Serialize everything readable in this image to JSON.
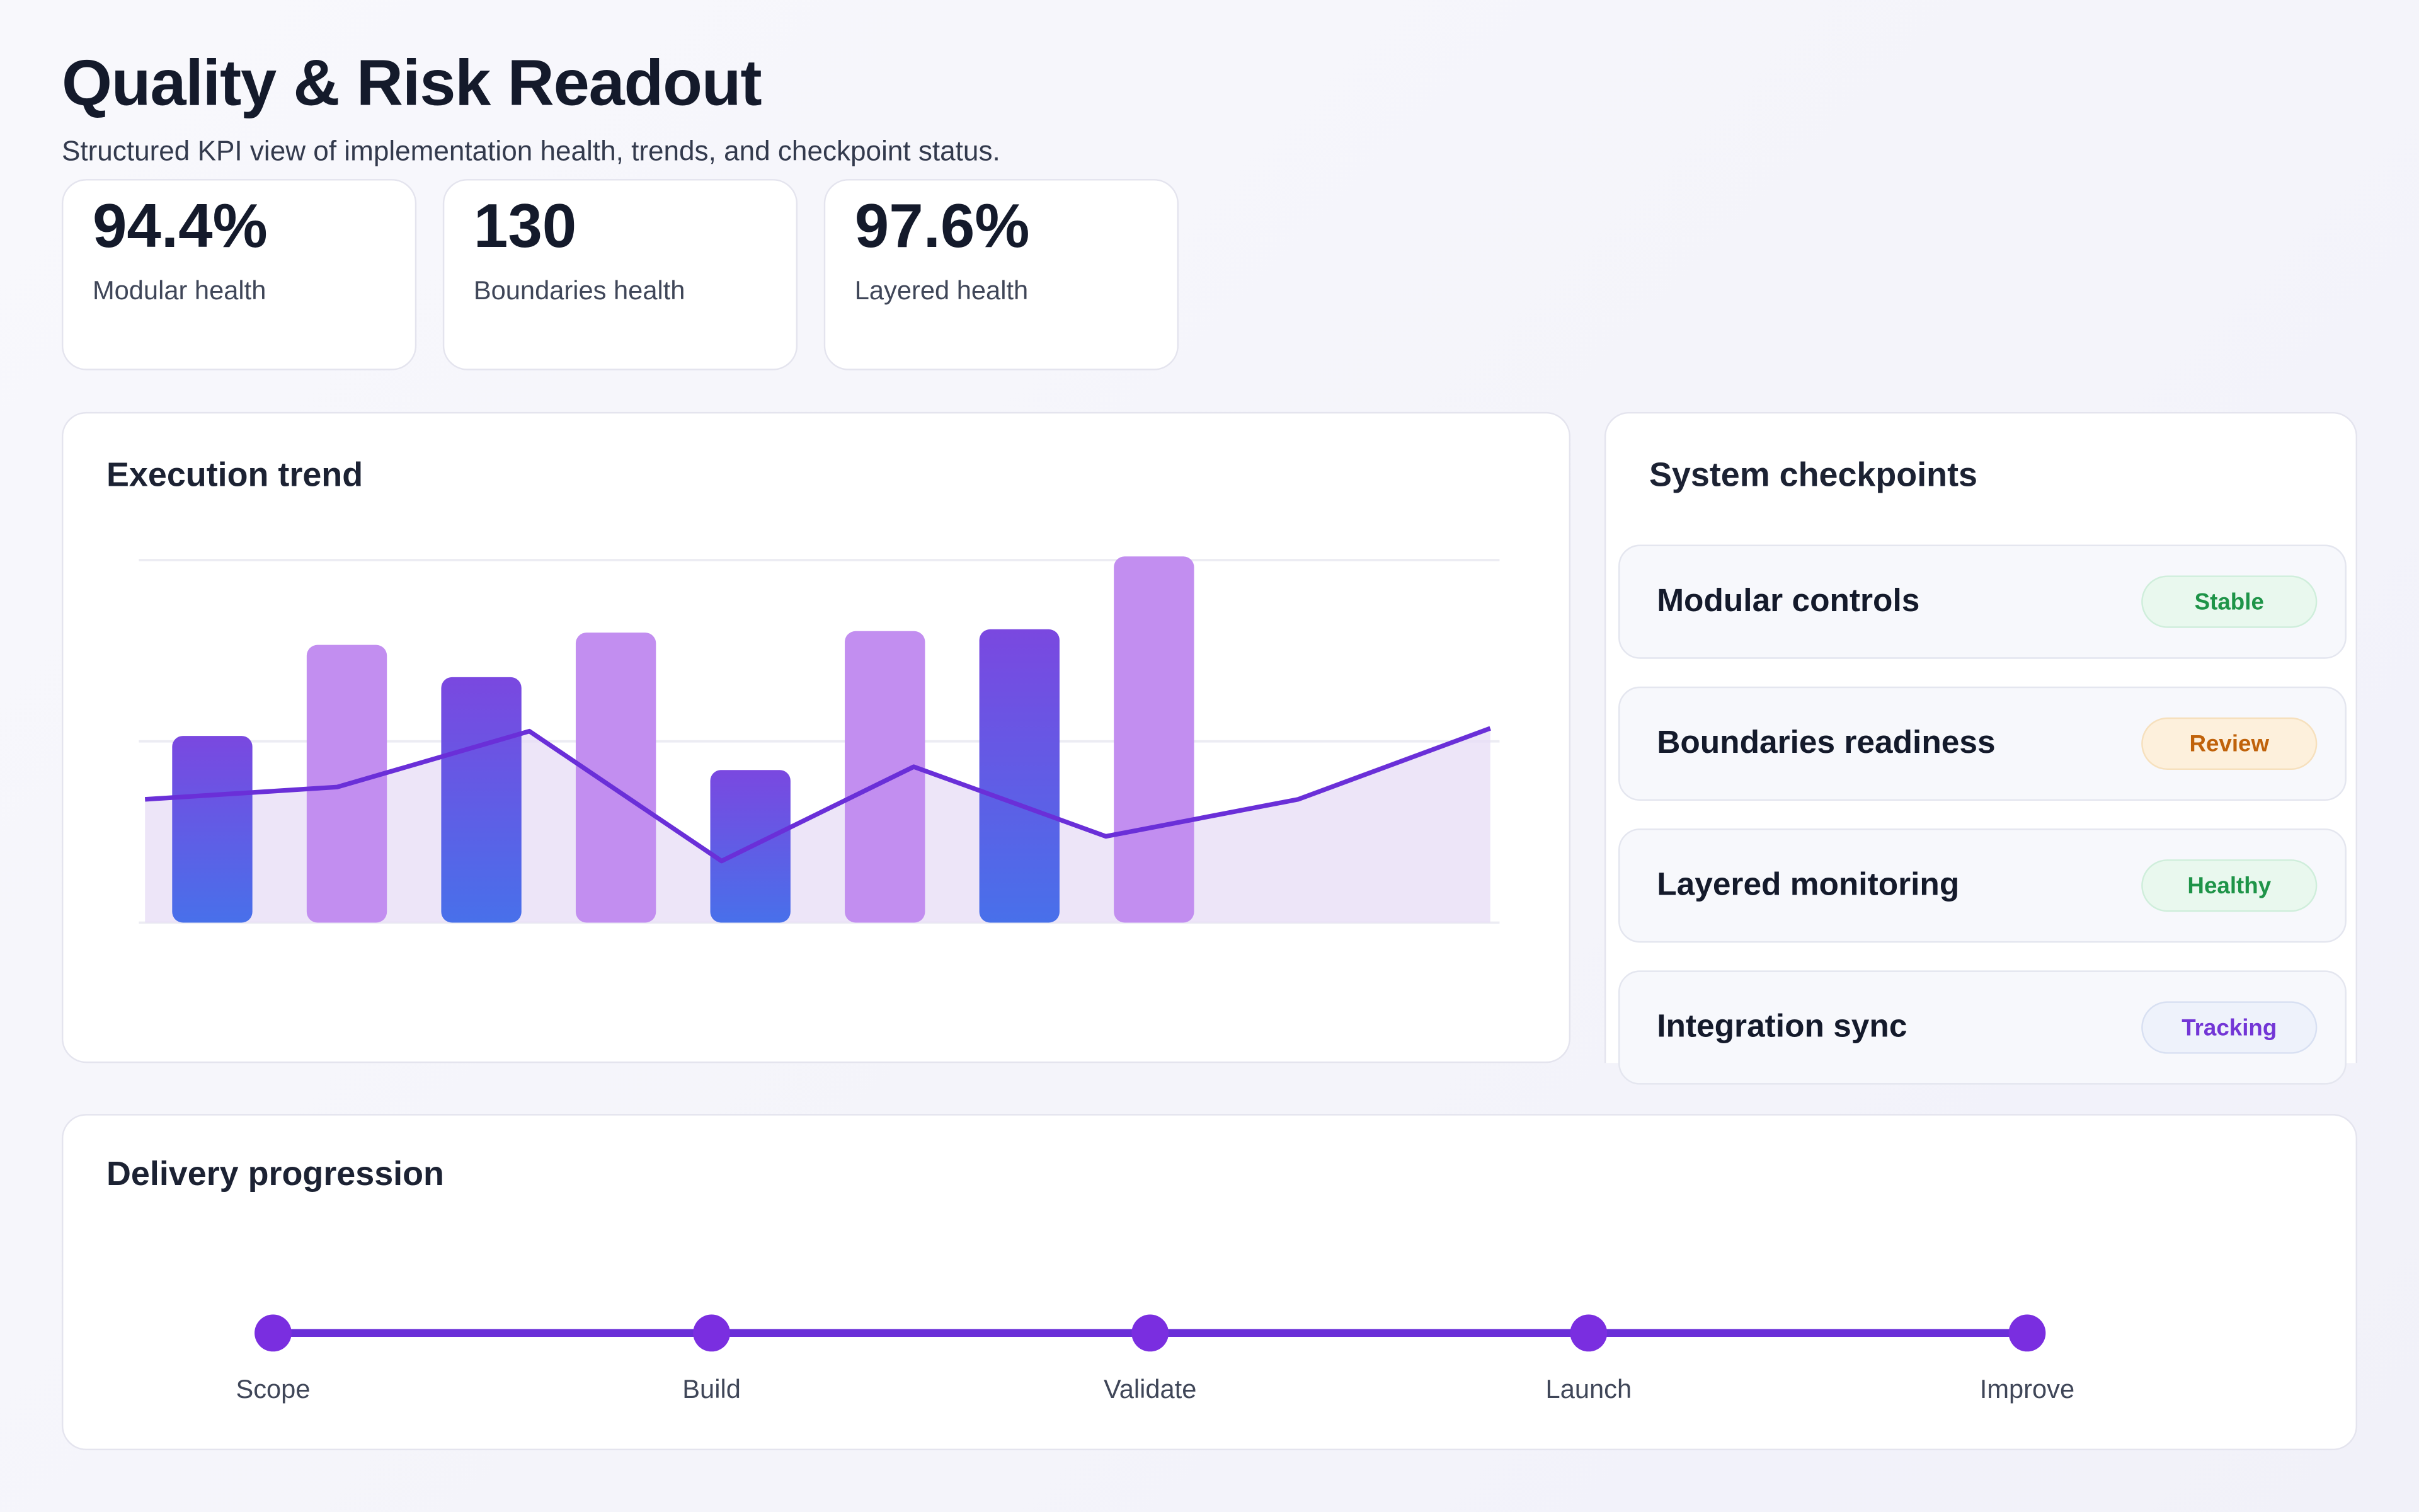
{
  "header": {
    "title": "Quality & Risk Readout",
    "subtitle": "Structured KPI view of implementation health, trends, and checkpoint status."
  },
  "kpis": [
    {
      "value": "94.4%",
      "label": "Modular health"
    },
    {
      "value": "130",
      "label": "Boundaries health"
    },
    {
      "value": "97.6%",
      "label": "Layered health"
    }
  ],
  "chart_data": [
    {
      "type": "bar",
      "title": "Execution trend",
      "categories": [
        null,
        null,
        null,
        null,
        null,
        null,
        null,
        null,
        null,
        null
      ],
      "values": [
        51.5,
        76.6,
        67.7,
        80,
        42.1,
        80.4,
        80.9,
        101,
        null,
        null
      ],
      "colors": [
        "#7a48e0",
        "#c28ef0",
        "#7a48e0",
        "#c28ef0",
        "#7a48e0",
        "#c28ef0",
        "#7a48e0",
        "#c28ef0",
        null,
        null
      ],
      "gradient_end": "#4870ea",
      "ylim": [
        0,
        100
      ],
      "yticks": [
        0,
        50,
        100
      ],
      "grid": true
    },
    {
      "type": "area",
      "categories": [
        null,
        null,
        null,
        null,
        null,
        null,
        null,
        null
      ],
      "values": [
        34,
        37.4,
        52.8,
        17,
        43,
        23.8,
        34,
        53.6
      ],
      "color": "#6a2fd8",
      "fill": "#e9dff6",
      "ylim": [
        0,
        100
      ]
    }
  ],
  "checkpoints": {
    "title": "System checkpoints",
    "items": [
      {
        "name": "Modular controls",
        "status": "Stable"
      },
      {
        "name": "Boundaries readiness",
        "status": "Review"
      },
      {
        "name": "Layered monitoring",
        "status": "Healthy"
      },
      {
        "name": "Integration sync",
        "status": "Tracking"
      }
    ]
  },
  "progression": {
    "title": "Delivery progression",
    "steps": [
      "Scope",
      "Build",
      "Validate",
      "Launch",
      "Improve"
    ]
  }
}
